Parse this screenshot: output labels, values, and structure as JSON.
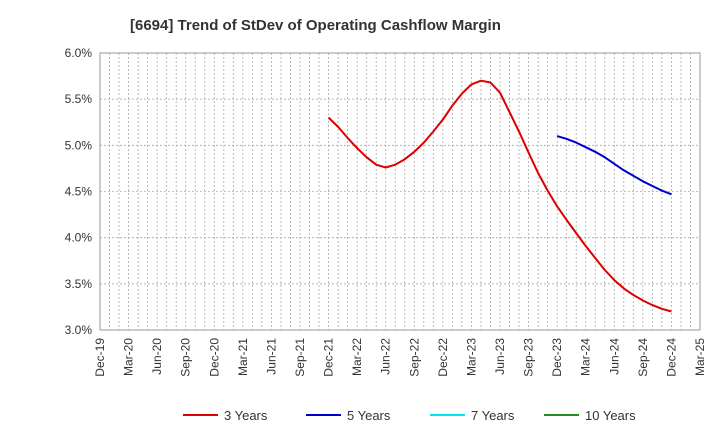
{
  "chart_data": {
    "type": "line",
    "title": "[6694]  Trend of StDev of Operating Cashflow Margin",
    "xlabel": "",
    "ylabel": "",
    "x_tick_labels": [
      "Dec-19",
      "Mar-20",
      "Jun-20",
      "Sep-20",
      "Dec-20",
      "Mar-21",
      "Jun-21",
      "Sep-21",
      "Dec-21",
      "Mar-22",
      "Jun-22",
      "Sep-22",
      "Dec-22",
      "Mar-23",
      "Jun-23",
      "Sep-23",
      "Dec-23",
      "Mar-24",
      "Jun-24",
      "Sep-24",
      "Dec-24",
      "Mar-25"
    ],
    "y_tick_labels": [
      "6.0%",
      "5.5%",
      "5.0%",
      "4.5%",
      "4.0%",
      "3.5%",
      "3.0%"
    ],
    "ylim": [
      3.0,
      6.0
    ],
    "grid": true,
    "legend_position": "bottom",
    "series": [
      {
        "name": "3 Years",
        "color": "#dd0000",
        "points": [
          [
            "Dec-21",
            5.3
          ],
          [
            "Jan-22",
            5.2
          ],
          [
            "Feb-22",
            5.08
          ],
          [
            "Mar-22",
            4.97
          ],
          [
            "Apr-22",
            4.87
          ],
          [
            "May-22",
            4.79
          ],
          [
            "Jun-22",
            4.76
          ],
          [
            "Jul-22",
            4.79
          ],
          [
            "Aug-22",
            4.85
          ],
          [
            "Sep-22",
            4.93
          ],
          [
            "Oct-22",
            5.03
          ],
          [
            "Nov-22",
            5.15
          ],
          [
            "Dec-22",
            5.28
          ],
          [
            "Jan-23",
            5.43
          ],
          [
            "Feb-23",
            5.56
          ],
          [
            "Mar-23",
            5.66
          ],
          [
            "Apr-23",
            5.7
          ],
          [
            "May-23",
            5.68
          ],
          [
            "Jun-23",
            5.57
          ],
          [
            "Jul-23",
            5.36
          ],
          [
            "Aug-23",
            5.15
          ],
          [
            "Sep-23",
            4.92
          ],
          [
            "Oct-23",
            4.7
          ],
          [
            "Nov-23",
            4.51
          ],
          [
            "Dec-23",
            4.34
          ],
          [
            "Jan-24",
            4.19
          ],
          [
            "Feb-24",
            4.05
          ],
          [
            "Mar-24",
            3.91
          ],
          [
            "Apr-24",
            3.78
          ],
          [
            "May-24",
            3.65
          ],
          [
            "Jun-24",
            3.54
          ],
          [
            "Jul-24",
            3.45
          ],
          [
            "Aug-24",
            3.38
          ],
          [
            "Sep-24",
            3.32
          ],
          [
            "Oct-24",
            3.27
          ],
          [
            "Nov-24",
            3.23
          ],
          [
            "Dec-24",
            3.2
          ]
        ]
      },
      {
        "name": "5 Years",
        "color": "#0000cc",
        "points": [
          [
            "Dec-23",
            5.1
          ],
          [
            "Jan-24",
            5.07
          ],
          [
            "Feb-24",
            5.03
          ],
          [
            "Mar-24",
            4.98
          ],
          [
            "Apr-24",
            4.93
          ],
          [
            "May-24",
            4.87
          ],
          [
            "Jun-24",
            4.8
          ],
          [
            "Jul-24",
            4.73
          ],
          [
            "Aug-24",
            4.67
          ],
          [
            "Sep-24",
            4.61
          ],
          [
            "Oct-24",
            4.56
          ],
          [
            "Nov-24",
            4.51
          ],
          [
            "Dec-24",
            4.47
          ]
        ]
      },
      {
        "name": "7 Years",
        "color": "#00e5ee",
        "points": []
      },
      {
        "name": "10 Years",
        "color": "#228b22",
        "points": []
      }
    ]
  }
}
